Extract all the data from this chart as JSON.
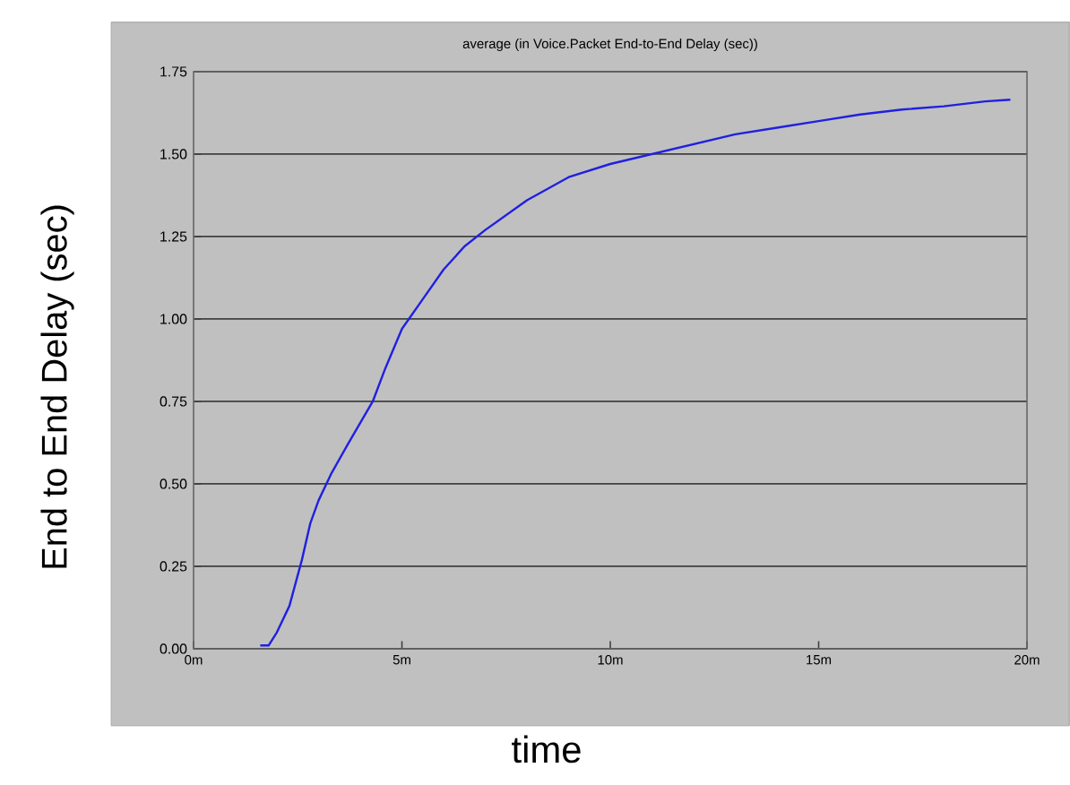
{
  "chart_data": {
    "type": "line",
    "title": "average (in Voice.Packet End-to-End Delay (sec))",
    "xlabel": "time",
    "ylabel": "End to End Delay (sec)",
    "xlim": [
      0,
      20
    ],
    "ylim": [
      0,
      1.75
    ],
    "xticks": [
      {
        "value": 0,
        "label": "0m"
      },
      {
        "value": 5,
        "label": "5m"
      },
      {
        "value": 10,
        "label": "10m"
      },
      {
        "value": 15,
        "label": "15m"
      },
      {
        "value": 20,
        "label": "20m"
      }
    ],
    "yticks": [
      {
        "value": 0,
        "label": "0.00"
      },
      {
        "value": 0.25,
        "label": "0.25"
      },
      {
        "value": 0.5,
        "label": "0.50"
      },
      {
        "value": 0.75,
        "label": "0.75"
      },
      {
        "value": 1,
        "label": "1.00"
      },
      {
        "value": 1.25,
        "label": "1.25"
      },
      {
        "value": 1.5,
        "label": "1.50"
      },
      {
        "value": 1.75,
        "label": "1.75"
      }
    ],
    "grid": "y",
    "marker": "none",
    "line_style": "solid",
    "series": [
      {
        "color": "#2020e0",
        "x": [
          1.6,
          1.8,
          2.0,
          2.3,
          2.6,
          2.8,
          3.0,
          3.3,
          3.7,
          4.3,
          4.6,
          5.0,
          5.5,
          6.0,
          6.5,
          7.0,
          8.0,
          9.0,
          10.0,
          11.0,
          12.0,
          13.0,
          14.0,
          15.0,
          16.0,
          17.0,
          18.0,
          19.0,
          19.6
        ],
        "values": [
          0.01,
          0.01,
          0.05,
          0.13,
          0.27,
          0.38,
          0.45,
          0.53,
          0.62,
          0.75,
          0.85,
          0.97,
          1.06,
          1.15,
          1.22,
          1.27,
          1.36,
          1.43,
          1.47,
          1.5,
          1.53,
          1.56,
          1.58,
          1.6,
          1.62,
          1.635,
          1.645,
          1.66,
          1.665
        ]
      }
    ]
  }
}
